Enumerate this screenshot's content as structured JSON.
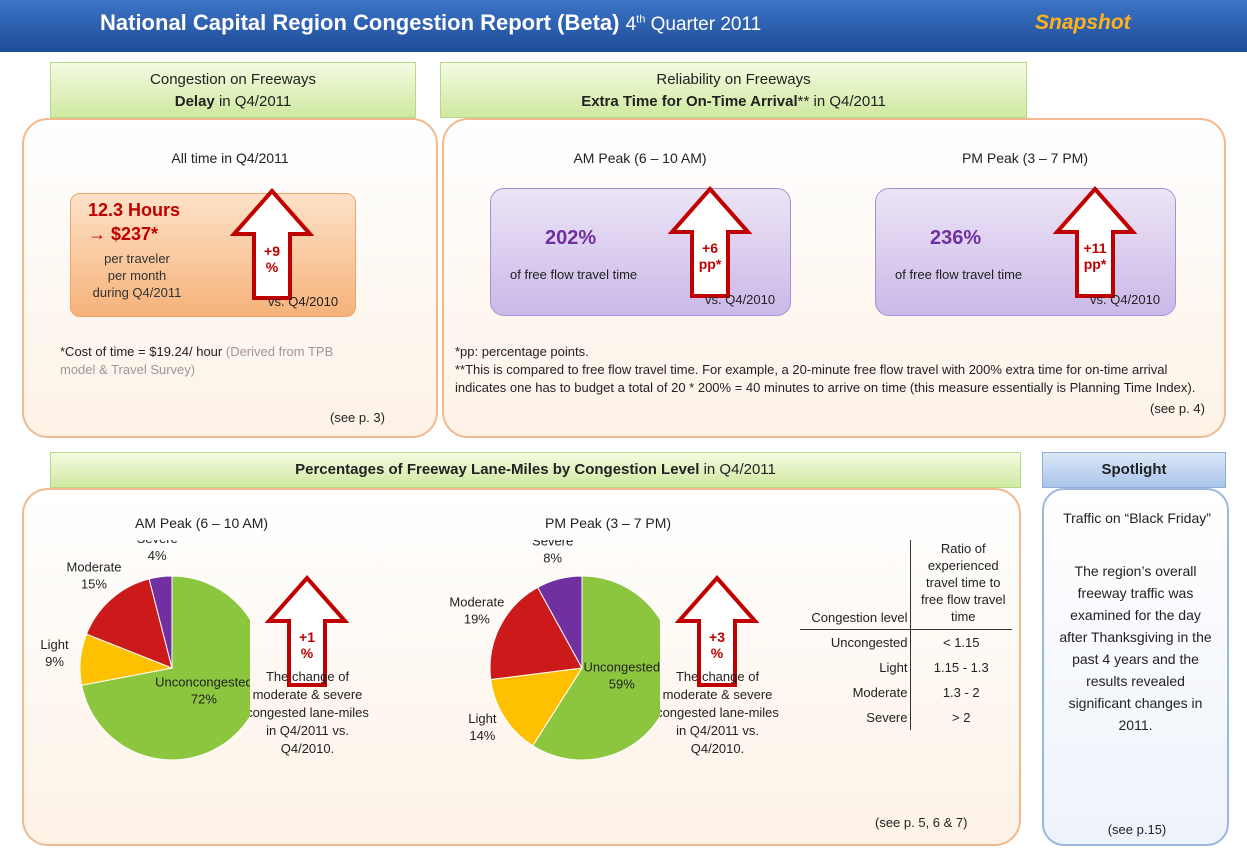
{
  "header": {
    "title": "National Capital Region Congestion Report (Beta)",
    "quarter_num": "4",
    "quarter_sup": "th",
    "quarter_rest": "Quarter 2011",
    "badge": "Snapshot"
  },
  "delay": {
    "heading": "Congestion on Freeways",
    "heading_bold": "Delay",
    "heading_rest": "in Q4/2011",
    "subtitle": "All time in Q4/2011",
    "hours": "12.3 Hours",
    "cost": "→ $237*",
    "per": [
      "per traveler",
      "per month",
      "during Q4/2011"
    ],
    "change": "+9",
    "change_unit": "%",
    "vs": "vs. Q4/2010",
    "note": "*Cost of time = $19.24/ hour",
    "note_gray": "(Derived from TPB model & Travel Survey)",
    "ref": "(see p. 3)"
  },
  "reliability": {
    "heading": "Reliability on Freeways",
    "heading_bold": "Extra Time for On-Time Arrival",
    "heading_rest": "** in Q4/2011",
    "peaks": [
      {
        "title": "AM Peak (6 – 10 AM)",
        "value": "202%",
        "desc": "of free flow travel time",
        "change": "+6",
        "change_unit": "pp*",
        "vs": "vs. Q4/2010"
      },
      {
        "title": "PM Peak (3 – 7 PM)",
        "value": "236%",
        "desc": "of free flow travel time",
        "change": "+11",
        "change_unit": "pp*",
        "vs": "vs. Q4/2010"
      }
    ],
    "notes": [
      "*pp: percentage points.",
      "**This is compared to free flow travel time. For example, a 20-minute free flow travel with 200% extra time for on-time arrival indicates one has to budget a total of 20 * 200% = 40 minutes to arrive on time (this measure essentially is Planning Time Index)."
    ],
    "ref": "(see p. 4)"
  },
  "lane_miles": {
    "heading_bold": "Percentages of Freeway Lane-Miles by Congestion Level",
    "heading_rest": "in Q4/2011",
    "charts": [
      {
        "type": "pie",
        "title": "AM Peak (6 – 10 AM)",
        "categories": [
          "Unconcongested",
          "Light",
          "Moderate",
          "Severe"
        ],
        "values": [
          72,
          9,
          15,
          4
        ],
        "value_labels": [
          "72%",
          "9%",
          "15%",
          "4%"
        ],
        "colors": [
          "#8cc63f",
          "#ffc000",
          "#cc1a1a",
          "#7030a0"
        ],
        "change": "+1",
        "change_unit": "%",
        "change_text": "The change of moderate & severe congested lane-miles in Q4/2011 vs. Q4/2010."
      },
      {
        "type": "pie",
        "title": "PM Peak (3 – 7 PM)",
        "categories": [
          "Uncongested",
          "Light",
          "Moderate",
          "Severe"
        ],
        "values": [
          59,
          14,
          19,
          8
        ],
        "value_labels": [
          "59%",
          "14%",
          "19%",
          "8%"
        ],
        "colors": [
          "#8cc63f",
          "#ffc000",
          "#cc1a1a",
          "#7030a0"
        ],
        "change": "+3",
        "change_unit": "%",
        "change_text": "The change of moderate & severe congested lane-miles in Q4/2011 vs. Q4/2010."
      }
    ],
    "table": {
      "header": [
        "Congestion level",
        "Ratio of experienced travel time to free flow travel time"
      ],
      "rows": [
        [
          "Uncongested",
          "< 1.15"
        ],
        [
          "Light",
          "1.15 - 1.3"
        ],
        [
          "Moderate",
          "1.3 - 2"
        ],
        [
          "Severe",
          "> 2"
        ]
      ]
    },
    "ref": "(see p. 5, 6 & 7)"
  },
  "spotlight": {
    "title": "Spotlight",
    "lead": "Traffic on “Black Friday”",
    "body": "The region’s overall freeway traffic was examined for the day after Thanksgiving in the past 4 years and the results revealed significant changes in 2011.",
    "ref": "(see p.15)"
  }
}
